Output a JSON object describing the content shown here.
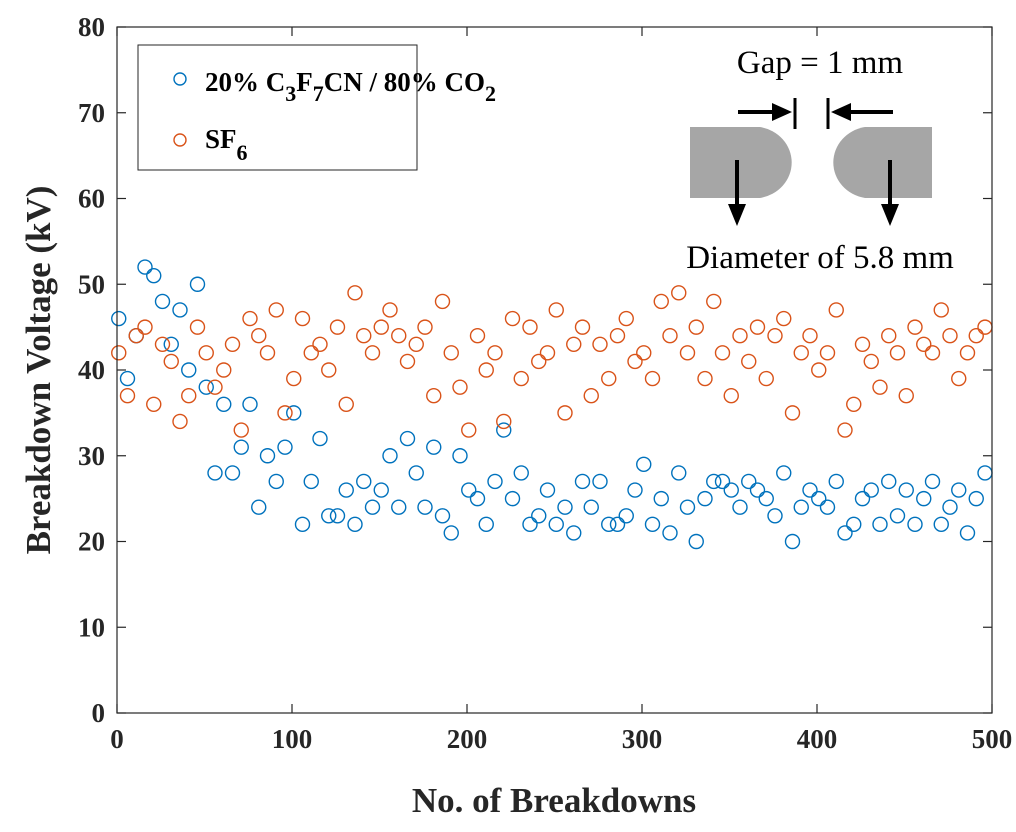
{
  "chart_data": {
    "type": "scatter",
    "title": "",
    "xlabel": "No. of Breakdowns",
    "ylabel": "Breakdown Voltage (kV)",
    "xlim": [
      0,
      500
    ],
    "ylim": [
      0,
      80
    ],
    "xticks": [
      "0",
      "100",
      "200",
      "300",
      "400",
      "500"
    ],
    "yticks": [
      "0",
      "10",
      "20",
      "30",
      "40",
      "50",
      "60",
      "70",
      "80"
    ],
    "grid": false,
    "legend_placement": "top-left",
    "marker": "open-circle",
    "x": [
      1,
      6,
      11,
      16,
      21,
      26,
      31,
      36,
      41,
      46,
      51,
      56,
      61,
      66,
      71,
      76,
      81,
      86,
      91,
      96,
      101,
      106,
      111,
      116,
      121,
      126,
      131,
      136,
      141,
      146,
      151,
      156,
      161,
      166,
      171,
      176,
      181,
      186,
      191,
      196,
      201,
      206,
      211,
      216,
      221,
      226,
      231,
      236,
      241,
      246,
      251,
      256,
      261,
      266,
      271,
      276,
      281,
      286,
      291,
      296,
      301,
      306,
      311,
      316,
      321,
      326,
      331,
      336,
      341,
      346,
      351,
      356,
      361,
      366,
      371,
      376,
      381,
      386,
      391,
      396,
      401,
      406,
      411,
      416,
      421,
      426,
      431,
      436,
      441,
      446,
      451,
      456,
      461,
      466,
      471,
      476,
      481,
      486,
      491,
      496
    ],
    "series": [
      {
        "name": "20% C3F7CN / 80% CO2",
        "name_parts": [
          "20% C",
          "3",
          "F",
          "7",
          "CN / 80% CO",
          "2"
        ],
        "color": "#0072BD",
        "values": [
          46,
          39,
          44,
          52,
          51,
          48,
          43,
          47,
          40,
          50,
          38,
          28,
          36,
          28,
          31,
          36,
          24,
          30,
          27,
          31,
          35,
          22,
          27,
          32,
          23,
          23,
          26,
          22,
          27,
          24,
          26,
          30,
          24,
          32,
          28,
          24,
          31,
          23,
          21,
          30,
          26,
          25,
          22,
          27,
          33,
          25,
          28,
          22,
          23,
          26,
          22,
          24,
          21,
          27,
          24,
          27,
          22,
          22,
          23,
          26,
          29,
          22,
          25,
          21,
          28,
          24,
          20,
          25,
          27,
          27,
          26,
          24,
          27,
          26,
          25,
          23,
          28,
          20,
          24,
          26,
          25,
          24,
          27,
          21,
          22,
          25,
          26,
          22,
          27,
          23,
          26,
          22,
          25,
          27,
          22,
          24,
          26,
          21,
          25,
          28
        ]
      },
      {
        "name": "SF6",
        "name_parts": [
          "SF",
          "6"
        ],
        "color": "#D95319",
        "values": [
          42,
          37,
          44,
          45,
          36,
          43,
          41,
          34,
          37,
          45,
          42,
          38,
          40,
          43,
          33,
          46,
          44,
          42,
          47,
          35,
          39,
          46,
          42,
          43,
          40,
          45,
          36,
          49,
          44,
          42,
          45,
          47,
          44,
          41,
          43,
          45,
          37,
          48,
          42,
          38,
          33,
          44,
          40,
          42,
          34,
          46,
          39,
          45,
          41,
          42,
          47,
          35,
          43,
          45,
          37,
          43,
          39,
          44,
          46,
          41,
          42,
          39,
          48,
          44,
          49,
          42,
          45,
          39,
          48,
          42,
          37,
          44,
          41,
          45,
          39,
          44,
          46,
          35,
          42,
          44,
          40,
          42,
          47,
          33,
          36,
          43,
          41,
          38,
          44,
          42,
          37,
          45,
          43,
          42,
          47,
          44,
          39,
          42,
          44,
          45
        ]
      }
    ],
    "annotations": {
      "gap": "Gap = 1 mm",
      "diameter": "Diameter of 5.8 mm"
    }
  }
}
